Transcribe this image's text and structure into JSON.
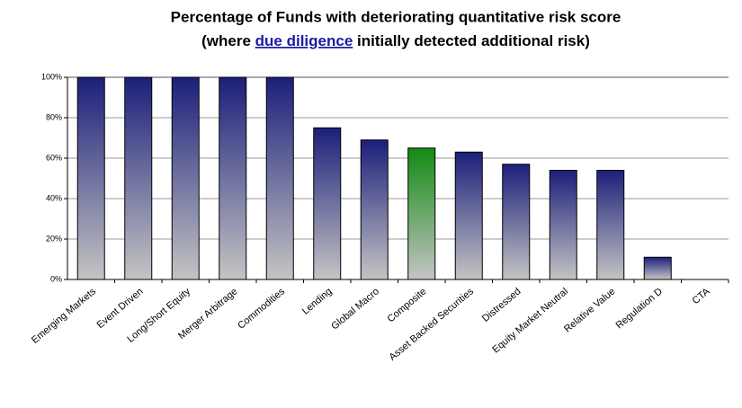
{
  "chart_data": {
    "type": "bar",
    "title": "Percentage of Funds with deteriorating quantitative risk score",
    "subtitle_parts": [
      "(where",
      "due diligence",
      "initially detected additional risk)"
    ],
    "categories": [
      "Emerging Markets",
      "Event Driven",
      "Long/Short Equity",
      "Merger Arbitrage",
      "Commodities",
      "Lending",
      "Global Macro",
      "Composite",
      "Asset Backed Securities",
      "Distressed",
      "Equity Market Neutral",
      "Relative Value",
      "Regulation D",
      "CTA"
    ],
    "values": [
      100,
      100,
      100,
      100,
      100,
      75,
      69,
      65,
      63,
      57,
      54,
      54,
      11,
      0
    ],
    "colors": [
      "#1c1f7a",
      "#1c1f7a",
      "#1c1f7a",
      "#1c1f7a",
      "#1c1f7a",
      "#1c1f7a",
      "#1c1f7a",
      "#128a12",
      "#1c1f7a",
      "#1c1f7a",
      "#1c1f7a",
      "#1c1f7a",
      "#1c1f7a",
      "#1c1f7a"
    ],
    "gradient_end": "#c4c4c4",
    "ylim": [
      0,
      100
    ],
    "yticks": [
      {
        "value": 0,
        "label": "0%"
      },
      {
        "value": 20,
        "label": "20%"
      },
      {
        "value": 40,
        "label": "40%"
      },
      {
        "value": 60,
        "label": "60%"
      },
      {
        "value": 80,
        "label": "80%"
      },
      {
        "value": 100,
        "label": "100%"
      }
    ],
    "grid": true
  }
}
